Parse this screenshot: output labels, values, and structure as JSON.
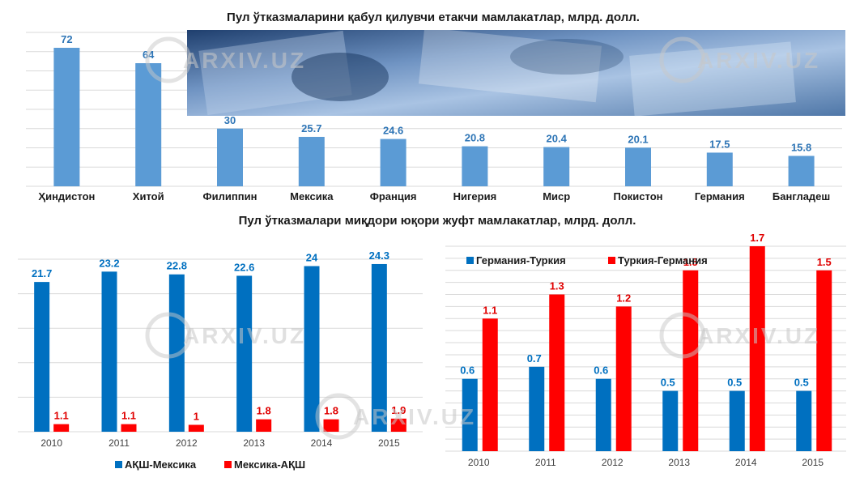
{
  "colors": {
    "bar_light": "#5b9bd5",
    "blue": "#0070c0",
    "red": "#ff0000",
    "grid": "#d9d9d9"
  },
  "watermark": "ARXIV.UZ",
  "chart_data": [
    {
      "type": "bar",
      "title": "Пул ўтказмаларини қабул қилувчи етакчи мамлакатлар, млрд. долл.",
      "categories": [
        "Ҳиндистон",
        "Хитой",
        "Филиппин",
        "Мексика",
        "Франция",
        "Нигерия",
        "Миср",
        "Покистон",
        "Германия",
        "Бангладеш"
      ],
      "values": [
        72,
        64,
        30,
        25.7,
        24.6,
        20.8,
        20.4,
        20.1,
        17.5,
        15.8
      ],
      "value_labels": [
        "72",
        "64",
        "30",
        "25.7",
        "24.6",
        "20.8",
        "20.4",
        "20.1",
        "17.5",
        "15.8"
      ],
      "ylim": [
        0,
        80
      ],
      "grid": true
    },
    {
      "type": "bar",
      "title": "Пул ўтказмалари миқдори юқори жуфт мамлакатлар, млрд. долл.",
      "categories": [
        "2010",
        "2011",
        "2012",
        "2013",
        "2014",
        "2015"
      ],
      "series": [
        {
          "name": "АҚШ-Мексика",
          "values": [
            21.7,
            23.2,
            22.8,
            22.6,
            24,
            24.3
          ],
          "labels": [
            "21.7",
            "23.2",
            "22.8",
            "22.6",
            "24",
            "24.3"
          ]
        },
        {
          "name": "Мексика-АҚШ",
          "values": [
            1.1,
            1.1,
            1,
            1.8,
            1.8,
            1.9
          ],
          "labels": [
            "1.1",
            "1.1",
            "1",
            "1.8",
            "1.8",
            "1.9"
          ]
        }
      ],
      "ylim": [
        0,
        25
      ],
      "legend": "bottom",
      "grid": true
    },
    {
      "type": "bar",
      "categories": [
        "2010",
        "2011",
        "2012",
        "2013",
        "2014",
        "2015"
      ],
      "series": [
        {
          "name": "Германия-Туркия",
          "values": [
            0.6,
            0.7,
            0.6,
            0.5,
            0.5,
            0.5
          ],
          "labels": [
            "0.6",
            "0.7",
            "0.6",
            "0.5",
            "0.5",
            "0.5"
          ]
        },
        {
          "name": "Туркия-Германия",
          "values": [
            1.1,
            1.3,
            1.2,
            1.5,
            1.7,
            1.5
          ],
          "labels": [
            "1.1",
            "1.3",
            "1.2",
            "1.5",
            "1.7",
            "1.5"
          ]
        }
      ],
      "ylim": [
        0,
        1.7
      ],
      "legend": "top-left",
      "grid": true
    }
  ]
}
